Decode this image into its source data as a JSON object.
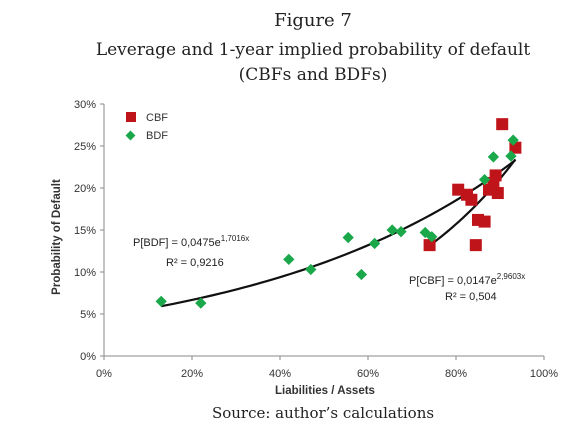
{
  "figure": {
    "number": "Figure 7",
    "title_line1": "Leverage and 1-year implied probability of default",
    "title_line2": "(CBFs and BDFs)",
    "source": "Source: author’s calculations"
  },
  "chart_data": {
    "type": "scatter",
    "xlabel": "Liabilities / Assets",
    "ylabel": "Probability of Default",
    "xlim": [
      0,
      1
    ],
    "ylim": [
      0,
      0.3
    ],
    "x_ticks": [
      0,
      0.2,
      0.4,
      0.6,
      0.8,
      1.0
    ],
    "x_tick_labels": [
      "0%",
      "20%",
      "40%",
      "60%",
      "80%",
      "100%"
    ],
    "y_ticks": [
      0,
      0.05,
      0.1,
      0.15,
      0.2,
      0.25,
      0.3
    ],
    "y_tick_labels": [
      "0%",
      "5%",
      "10%",
      "15%",
      "20%",
      "25%",
      "30%"
    ],
    "grid": false,
    "legend_position": "top-left",
    "series": [
      {
        "name": "CBF",
        "marker": "square",
        "color": "#c0141b",
        "points": [
          [
            0.74,
            0.132
          ],
          [
            0.805,
            0.198
          ],
          [
            0.825,
            0.192
          ],
          [
            0.835,
            0.186
          ],
          [
            0.845,
            0.132
          ],
          [
            0.85,
            0.162
          ],
          [
            0.865,
            0.16
          ],
          [
            0.875,
            0.198
          ],
          [
            0.885,
            0.206
          ],
          [
            0.89,
            0.215
          ],
          [
            0.895,
            0.194
          ],
          [
            0.905,
            0.276
          ],
          [
            0.935,
            0.248
          ]
        ]
      },
      {
        "name": "BDF",
        "marker": "diamond",
        "color": "#1aa84a",
        "points": [
          [
            0.13,
            0.065
          ],
          [
            0.22,
            0.063
          ],
          [
            0.42,
            0.115
          ],
          [
            0.47,
            0.103
          ],
          [
            0.555,
            0.141
          ],
          [
            0.585,
            0.097
          ],
          [
            0.615,
            0.134
          ],
          [
            0.655,
            0.15
          ],
          [
            0.675,
            0.148
          ],
          [
            0.73,
            0.147
          ],
          [
            0.745,
            0.142
          ],
          [
            0.865,
            0.21
          ],
          [
            0.885,
            0.237
          ],
          [
            0.925,
            0.238
          ],
          [
            0.93,
            0.257
          ]
        ]
      }
    ],
    "trendlines": [
      {
        "series": "BDF",
        "type": "exponential",
        "a": 0.0475,
        "b": 1.7016,
        "x_range": [
          0.13,
          0.935
        ],
        "equation_prefix": "P[BDF] = 0,0475e",
        "equation_exponent": "1,7016x",
        "r2_text": "R² = 0,9216"
      },
      {
        "series": "CBF",
        "type": "exponential",
        "a": 0.0147,
        "b": 2.9603,
        "x_range": [
          0.74,
          0.935
        ],
        "equation_prefix": "P[CBF] = 0,0147e",
        "equation_exponent": "2,9603x",
        "r2_text": "R² = 0,504"
      }
    ]
  }
}
